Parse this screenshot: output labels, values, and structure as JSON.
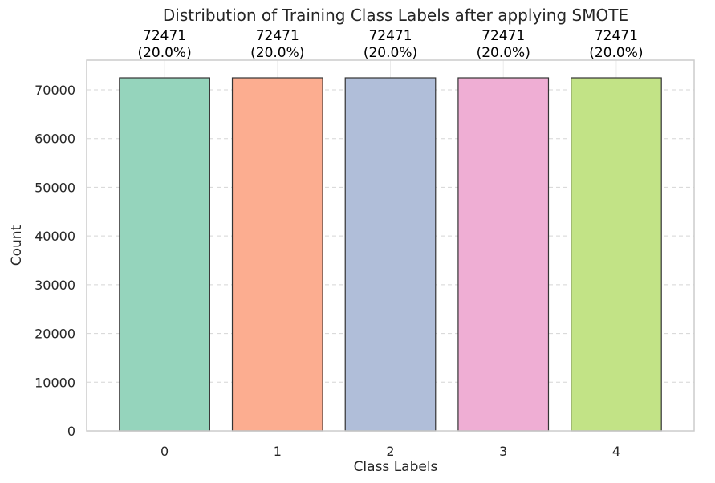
{
  "chart_data": {
    "type": "bar",
    "title": "Distribution of Training Class Labels after applying SMOTE",
    "xlabel": "Class Labels",
    "ylabel": "Count",
    "categories": [
      "0",
      "1",
      "2",
      "3",
      "4"
    ],
    "values": [
      72471,
      72471,
      72471,
      72471,
      72471
    ],
    "bar_labels": [
      {
        "count": "72471",
        "percent": "(20.0%)"
      },
      {
        "count": "72471",
        "percent": "(20.0%)"
      },
      {
        "count": "72471",
        "percent": "(20.0%)"
      },
      {
        "count": "72471",
        "percent": "(20.0%)"
      },
      {
        "count": "72471",
        "percent": "(20.0%)"
      }
    ],
    "colors": [
      "#95d4bc",
      "#fcad90",
      "#b0bed9",
      "#efaed4",
      "#c2e386"
    ],
    "ylim": [
      0,
      76095
    ],
    "yticks": [
      0,
      10000,
      20000,
      30000,
      40000,
      50000,
      60000,
      70000
    ],
    "grid": true,
    "legend": "none"
  }
}
